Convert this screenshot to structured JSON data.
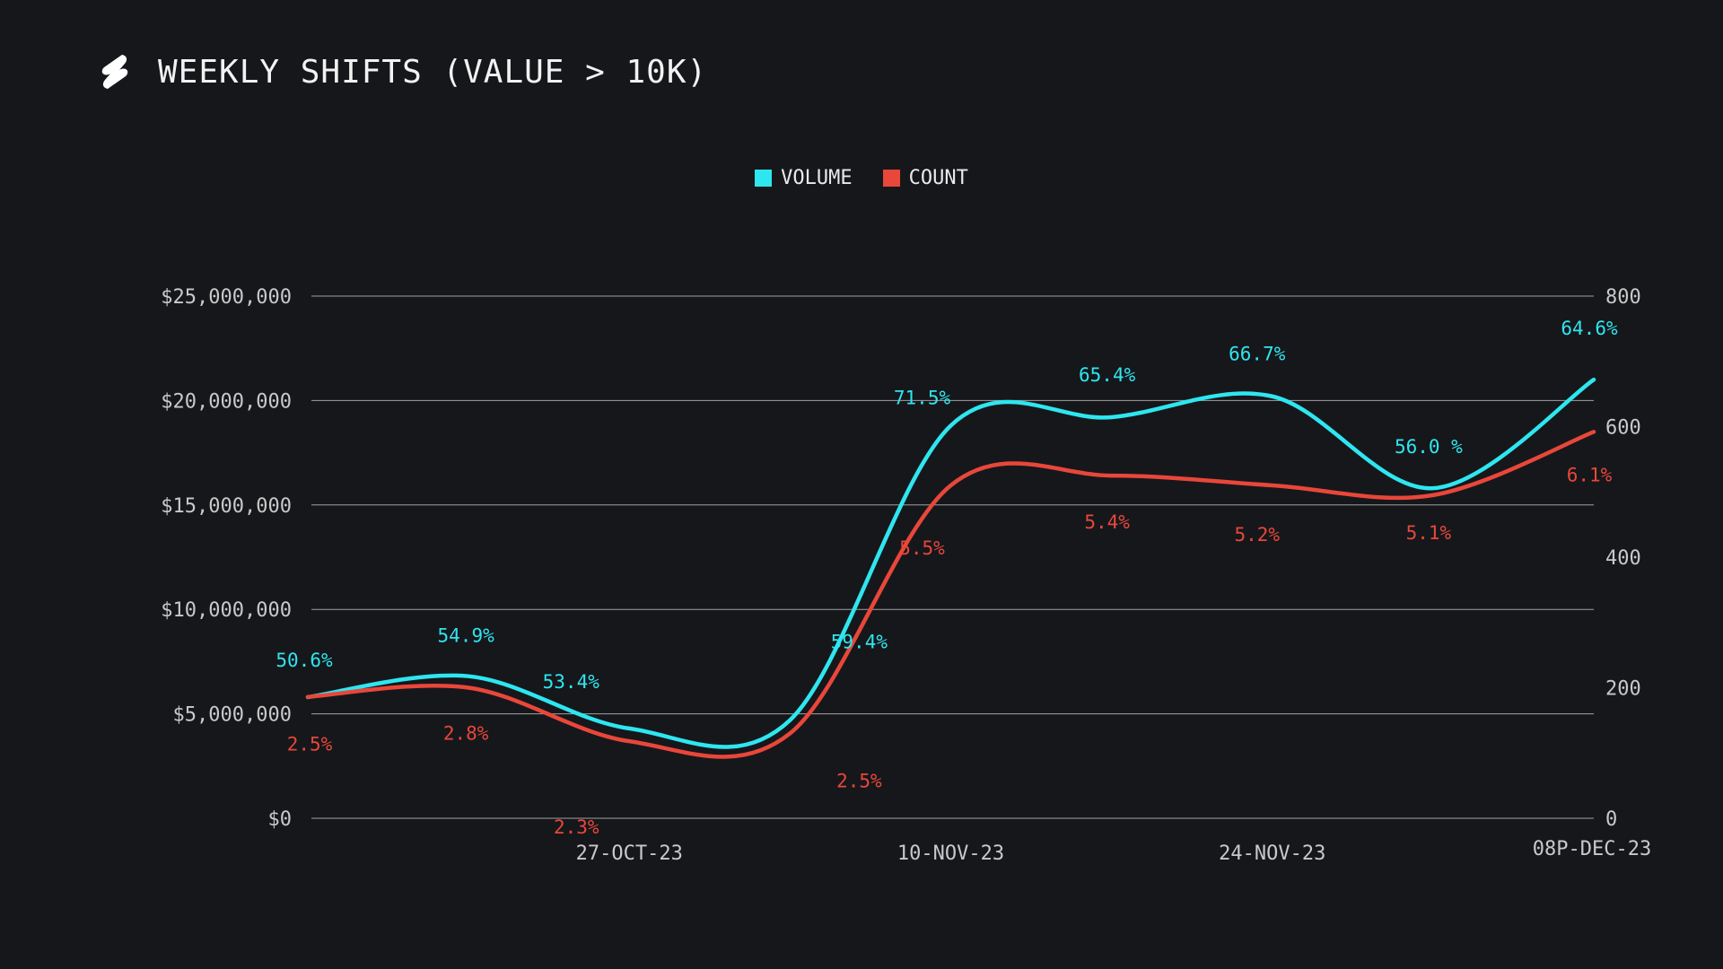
{
  "header": {
    "title": "WEEKLY SHIFTS (VALUE > 10K)",
    "logo_icon": "shapeshift-logo-icon"
  },
  "colors": {
    "background": "#16171b",
    "volume": "#2ee6f0",
    "count": "#e8473a",
    "grid": "#d0d0d0",
    "tick": "#c9c9c9"
  },
  "chart_data": {
    "type": "line",
    "title": "WEEKLY SHIFTS (VALUE > 10K)",
    "legend": [
      "VOLUME",
      "COUNT"
    ],
    "legend_position": "top-center",
    "x_tick_labels": [
      "27-OCT-23",
      "10-NOV-23",
      "24-NOV-23",
      "08P-DEC-23"
    ],
    "x_tick_at_point": [
      2,
      4,
      6,
      8
    ],
    "y_left": {
      "ticks": [
        0,
        5000000,
        10000000,
        15000000,
        20000000,
        25000000
      ],
      "tick_labels": [
        "$0",
        "$5,000,000",
        "$10,000,000",
        "$15,000,000",
        "$20,000,000",
        "$25,000,000"
      ],
      "range": [
        0,
        25000000
      ]
    },
    "y_right": {
      "ticks": [
        0,
        200,
        400,
        600,
        800
      ],
      "tick_labels": [
        "0",
        "200",
        "400",
        "600",
        "800"
      ],
      "range": [
        0,
        800
      ]
    },
    "grid": true,
    "series": [
      {
        "name": "VOLUME",
        "axis": "left",
        "values": [
          5800000,
          6800000,
          4300000,
          4700000,
          18800000,
          19200000,
          20200000,
          15800000,
          21000000
        ],
        "labels": [
          "50.6%",
          "54.9%",
          "53.4%",
          "59.4%",
          "71.5%",
          "65.4%",
          "66.7%",
          "56.0 %",
          "64.6%"
        ]
      },
      {
        "name": "COUNT",
        "axis": "right",
        "values": [
          186,
          200,
          118,
          130,
          510,
          525,
          510,
          495,
          592
        ],
        "labels": [
          "2.5%",
          "2.8%",
          "2.3%",
          "2.5%",
          "5.5%",
          "5.4%",
          "5.2%",
          "5.1%",
          "6.1%"
        ]
      }
    ]
  }
}
